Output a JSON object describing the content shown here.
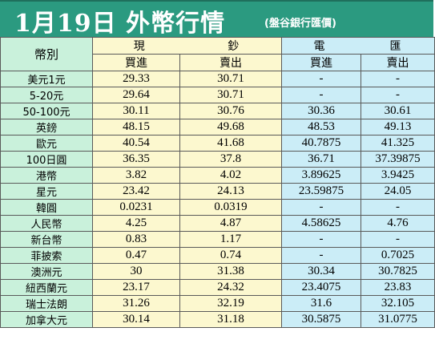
{
  "header": {
    "title": "1月19日 外幣行情",
    "source": "(盤谷銀行匯價)"
  },
  "table": {
    "currency_header": "幣別",
    "cash_group": [
      "現",
      "鈔"
    ],
    "wire_group": [
      "電",
      "匯"
    ],
    "buy_label": "買進",
    "sell_label": "賣出",
    "rows": [
      {
        "name": "美元1元",
        "cash_buy": "29.33",
        "cash_sell": "30.71",
        "wire_buy": "-",
        "wire_sell": "-"
      },
      {
        "name": "5-20元",
        "cash_buy": "29.64",
        "cash_sell": "30.71",
        "wire_buy": "-",
        "wire_sell": "-"
      },
      {
        "name": "50-100元",
        "cash_buy": "30.11",
        "cash_sell": "30.76",
        "wire_buy": "30.36",
        "wire_sell": "30.61"
      },
      {
        "name": "英鎊",
        "cash_buy": "48.15",
        "cash_sell": "49.68",
        "wire_buy": "48.53",
        "wire_sell": "49.13"
      },
      {
        "name": "歐元",
        "cash_buy": "40.54",
        "cash_sell": "41.68",
        "wire_buy": "40.7875",
        "wire_sell": "41.325"
      },
      {
        "name": "100日圓",
        "cash_buy": "36.35",
        "cash_sell": "37.8",
        "wire_buy": "36.71",
        "wire_sell": "37.39875"
      },
      {
        "name": "港幣",
        "cash_buy": "3.82",
        "cash_sell": "4.02",
        "wire_buy": "3.89625",
        "wire_sell": "3.9425"
      },
      {
        "name": "星元",
        "cash_buy": "23.42",
        "cash_sell": "24.13",
        "wire_buy": "23.59875",
        "wire_sell": "24.05"
      },
      {
        "name": "韓圓",
        "cash_buy": "0.0231",
        "cash_sell": "0.0319",
        "wire_buy": "-",
        "wire_sell": "-"
      },
      {
        "name": "人民幣",
        "cash_buy": "4.25",
        "cash_sell": "4.87",
        "wire_buy": "4.58625",
        "wire_sell": "4.76"
      },
      {
        "name": "新台幣",
        "cash_buy": "0.83",
        "cash_sell": "1.17",
        "wire_buy": "-",
        "wire_sell": "-"
      },
      {
        "name": "菲披索",
        "cash_buy": "0.47",
        "cash_sell": "0.74",
        "wire_buy": "-",
        "wire_sell": "0.7025"
      },
      {
        "name": "澳洲元",
        "cash_buy": "30",
        "cash_sell": "31.38",
        "wire_buy": "30.34",
        "wire_sell": "30.7825"
      },
      {
        "name": "紐西蘭元",
        "cash_buy": "23.17",
        "cash_sell": "24.32",
        "wire_buy": "23.4075",
        "wire_sell": "23.83"
      },
      {
        "name": "瑞士法朗",
        "cash_buy": "31.26",
        "cash_sell": "32.19",
        "wire_buy": "31.6",
        "wire_sell": "32.105"
      },
      {
        "name": "加拿大元",
        "cash_buy": "30.14",
        "cash_sell": "31.18",
        "wire_buy": "30.5875",
        "wire_sell": "31.0775"
      }
    ]
  }
}
